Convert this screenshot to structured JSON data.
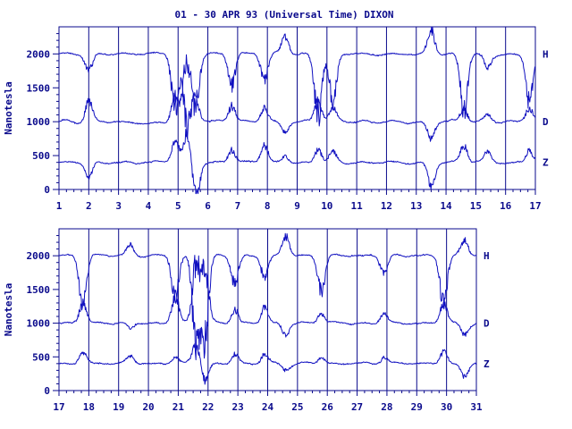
{
  "chart_data": {
    "type": "line",
    "title": "01 - 30 APR 93 (Universal Time) DIXON",
    "ylabel": "Nanotesla",
    "color": "#0a0a8c",
    "trace_color": "#1010c0",
    "panels": [
      {
        "id": "top",
        "xlim": [
          1,
          17
        ],
        "ylim": [
          0,
          2400
        ],
        "xticks": [
          "1",
          "2",
          "3",
          "4",
          "5",
          "6",
          "7",
          "8",
          "9",
          "10",
          "11",
          "12",
          "13",
          "14",
          "15",
          "16",
          "17"
        ],
        "yticks": [
          "0",
          "500",
          "1000",
          "1500",
          "2000"
        ],
        "series": [
          {
            "name": "H",
            "baseline": 2000
          },
          {
            "name": "D",
            "baseline": 1000
          },
          {
            "name": "Z",
            "baseline": 400
          }
        ],
        "disturbances": [
          {
            "day": 2.0,
            "H": -250,
            "D": 300,
            "Z": -200
          },
          {
            "day": 4.9,
            "H": -800,
            "D": 400,
            "Z": 300
          },
          {
            "day": 5.3,
            "H": -1000,
            "D": 900,
            "Z": 400
          },
          {
            "day": 5.6,
            "H": -700,
            "D": 300,
            "Z": -500
          },
          {
            "day": 6.8,
            "H": -450,
            "D": 250,
            "Z": 200
          },
          {
            "day": 7.9,
            "H": -400,
            "D": 200,
            "Z": 250
          },
          {
            "day": 8.6,
            "H": 250,
            "D": -150,
            "Z": 100
          },
          {
            "day": 9.7,
            "H": -900,
            "D": 300,
            "Z": 200
          },
          {
            "day": 10.2,
            "H": -700,
            "D": 200,
            "Z": 150
          },
          {
            "day": 13.5,
            "H": 350,
            "D": -250,
            "Z": -350
          },
          {
            "day": 14.6,
            "H": -800,
            "D": 200,
            "Z": 250
          },
          {
            "day": 15.4,
            "H": -200,
            "D": 100,
            "Z": 150
          },
          {
            "day": 16.8,
            "H": -700,
            "D": 200,
            "Z": 200
          }
        ]
      },
      {
        "id": "bottom",
        "xlim": [
          17,
          31
        ],
        "ylim": [
          0,
          2400
        ],
        "xticks": [
          "17",
          "18",
          "19",
          "20",
          "21",
          "22",
          "23",
          "24",
          "25",
          "26",
          "27",
          "28",
          "29",
          "30",
          "31"
        ],
        "yticks": [
          "0",
          "500",
          "1000",
          "1500",
          "2000"
        ],
        "series": [
          {
            "name": "H",
            "baseline": 2000
          },
          {
            "name": "D",
            "baseline": 1000
          },
          {
            "name": "Z",
            "baseline": 400
          }
        ],
        "disturbances": [
          {
            "day": 17.8,
            "H": -750,
            "D": 300,
            "Z": 200
          },
          {
            "day": 19.4,
            "H": 150,
            "D": -100,
            "Z": 100
          },
          {
            "day": 20.9,
            "H": -600,
            "D": 400,
            "Z": 100
          },
          {
            "day": 21.6,
            "H": -1300,
            "D": 900,
            "Z": 300
          },
          {
            "day": 21.9,
            "H": -1200,
            "D": 800,
            "Z": -250
          },
          {
            "day": 22.9,
            "H": -400,
            "D": 200,
            "Z": 150
          },
          {
            "day": 23.9,
            "H": -300,
            "D": 250,
            "Z": 150
          },
          {
            "day": 24.6,
            "H": 300,
            "D": -150,
            "Z": -100
          },
          {
            "day": 25.8,
            "H": -500,
            "D": 150,
            "Z": 100
          },
          {
            "day": 27.9,
            "H": -250,
            "D": 150,
            "Z": 100
          },
          {
            "day": 29.9,
            "H": -700,
            "D": 300,
            "Z": 200
          },
          {
            "day": 30.6,
            "H": 250,
            "D": -150,
            "Z": -200
          }
        ]
      }
    ]
  }
}
